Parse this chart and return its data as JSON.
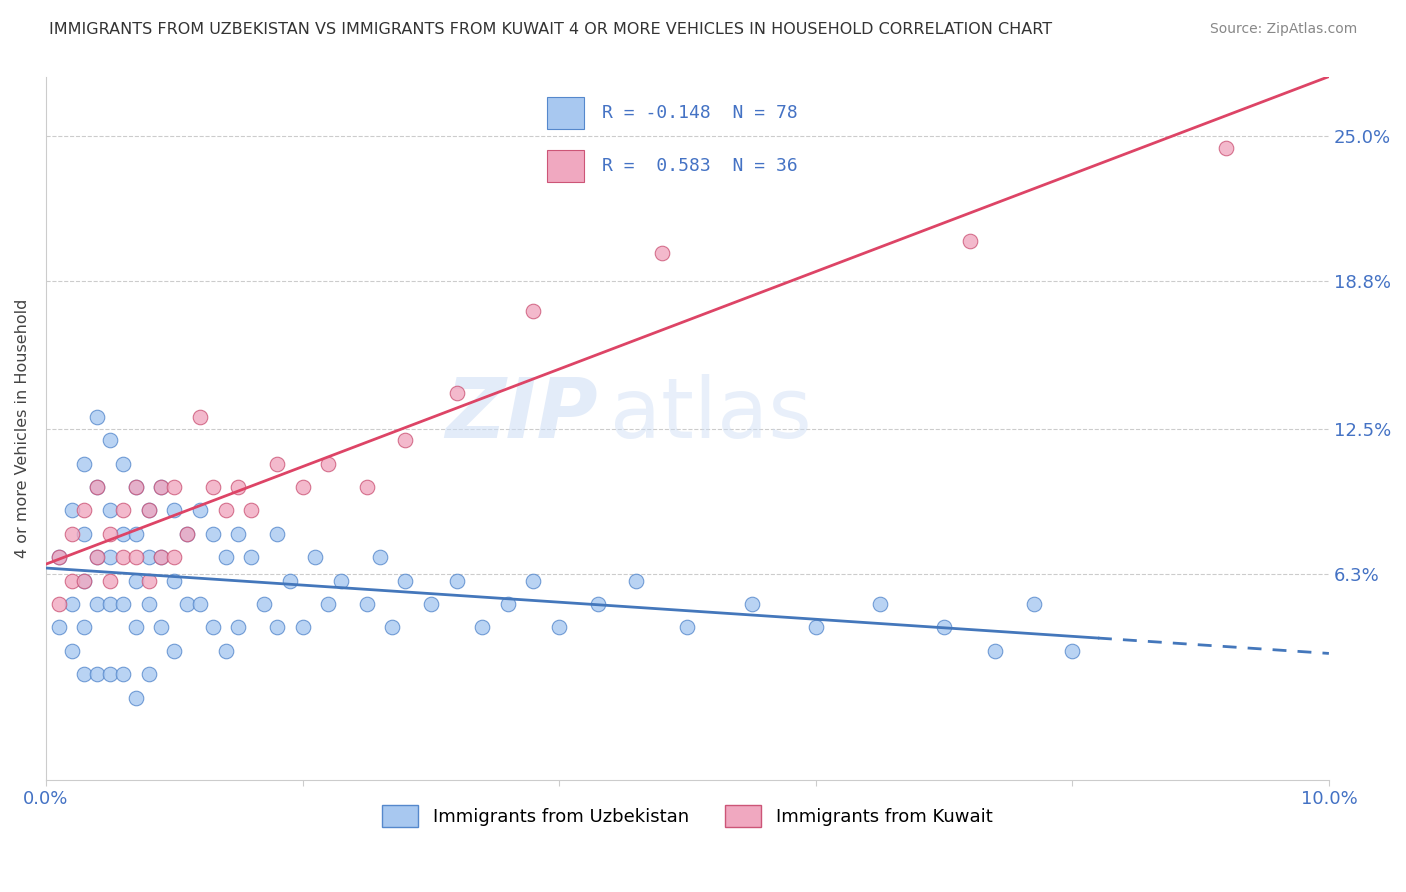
{
  "title": "IMMIGRANTS FROM UZBEKISTAN VS IMMIGRANTS FROM KUWAIT 4 OR MORE VEHICLES IN HOUSEHOLD CORRELATION CHART",
  "source": "Source: ZipAtlas.com",
  "ylabel": "4 or more Vehicles in Household",
  "xmin": 0.0,
  "xmax": 0.1,
  "ymin": -0.025,
  "ymax": 0.275,
  "watermark_zip": "ZIP",
  "watermark_atlas": "atlas",
  "legend_line1": "R = -0.148  N = 78",
  "legend_line2": "R =  0.583  N = 36",
  "uzbekistan_color": "#a8c8f0",
  "kuwait_color": "#f0a8c0",
  "uzbekistan_edge_color": "#5588cc",
  "kuwait_edge_color": "#cc5577",
  "uzbekistan_line_color": "#4477bb",
  "kuwait_line_color": "#dd4466",
  "uzbekistan_points_x": [
    0.001,
    0.001,
    0.002,
    0.002,
    0.002,
    0.003,
    0.003,
    0.003,
    0.003,
    0.003,
    0.004,
    0.004,
    0.004,
    0.004,
    0.004,
    0.005,
    0.005,
    0.005,
    0.005,
    0.005,
    0.006,
    0.006,
    0.006,
    0.006,
    0.007,
    0.007,
    0.007,
    0.007,
    0.007,
    0.008,
    0.008,
    0.008,
    0.008,
    0.009,
    0.009,
    0.009,
    0.01,
    0.01,
    0.01,
    0.011,
    0.011,
    0.012,
    0.012,
    0.013,
    0.013,
    0.014,
    0.014,
    0.015,
    0.015,
    0.016,
    0.017,
    0.018,
    0.018,
    0.019,
    0.02,
    0.021,
    0.022,
    0.023,
    0.025,
    0.026,
    0.027,
    0.028,
    0.03,
    0.032,
    0.034,
    0.036,
    0.038,
    0.04,
    0.043,
    0.046,
    0.05,
    0.055,
    0.06,
    0.065,
    0.07,
    0.074,
    0.077,
    0.08
  ],
  "uzbekistan_points_y": [
    0.07,
    0.04,
    0.09,
    0.05,
    0.03,
    0.11,
    0.08,
    0.06,
    0.04,
    0.02,
    0.13,
    0.1,
    0.07,
    0.05,
    0.02,
    0.12,
    0.09,
    0.07,
    0.05,
    0.02,
    0.11,
    0.08,
    0.05,
    0.02,
    0.1,
    0.08,
    0.06,
    0.04,
    0.01,
    0.09,
    0.07,
    0.05,
    0.02,
    0.1,
    0.07,
    0.04,
    0.09,
    0.06,
    0.03,
    0.08,
    0.05,
    0.09,
    0.05,
    0.08,
    0.04,
    0.07,
    0.03,
    0.08,
    0.04,
    0.07,
    0.05,
    0.08,
    0.04,
    0.06,
    0.04,
    0.07,
    0.05,
    0.06,
    0.05,
    0.07,
    0.04,
    0.06,
    0.05,
    0.06,
    0.04,
    0.05,
    0.06,
    0.04,
    0.05,
    0.06,
    0.04,
    0.05,
    0.04,
    0.05,
    0.04,
    0.03,
    0.05,
    0.03
  ],
  "kuwait_points_x": [
    0.001,
    0.001,
    0.002,
    0.002,
    0.003,
    0.003,
    0.004,
    0.004,
    0.005,
    0.005,
    0.006,
    0.006,
    0.007,
    0.007,
    0.008,
    0.008,
    0.009,
    0.009,
    0.01,
    0.01,
    0.011,
    0.012,
    0.013,
    0.014,
    0.015,
    0.016,
    0.018,
    0.02,
    0.022,
    0.025,
    0.028,
    0.032,
    0.038,
    0.048,
    0.072,
    0.092
  ],
  "kuwait_points_y": [
    0.07,
    0.05,
    0.08,
    0.06,
    0.09,
    0.06,
    0.1,
    0.07,
    0.08,
    0.06,
    0.09,
    0.07,
    0.1,
    0.07,
    0.09,
    0.06,
    0.1,
    0.07,
    0.1,
    0.07,
    0.08,
    0.13,
    0.1,
    0.09,
    0.1,
    0.09,
    0.11,
    0.1,
    0.11,
    0.1,
    0.12,
    0.14,
    0.175,
    0.2,
    0.205,
    0.245
  ],
  "ytick_positions": [
    0.0,
    0.063,
    0.125,
    0.188,
    0.25
  ],
  "ytick_labels": [
    "",
    "6.3%",
    "12.5%",
    "18.8%",
    "25.0%"
  ],
  "grid_color": "#cccccc",
  "axis_label_color": "#4472c4",
  "title_color": "#333333",
  "source_color": "#888888"
}
